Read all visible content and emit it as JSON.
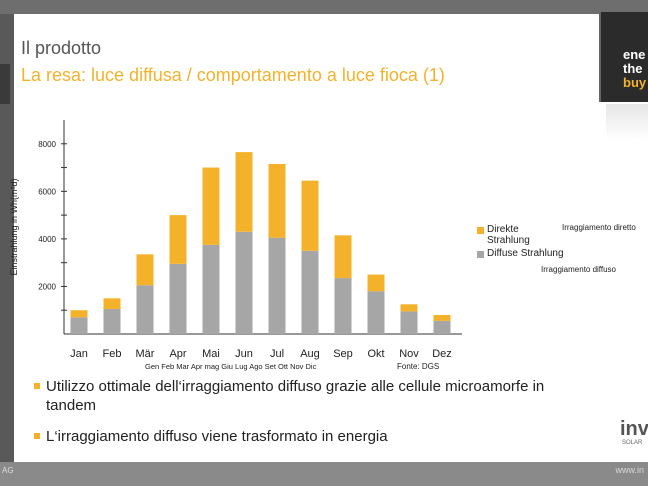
{
  "slide": {
    "title": "Il prodotto",
    "subtitle": "La resa: luce diffusa / comportamento a luce fioca (1)",
    "logo_lines": [
      "ene",
      "the",
      "buy"
    ],
    "brand": "inv",
    "brand_sub": "SOLAR",
    "footer_left": "AG",
    "footer_right": "www.in"
  },
  "colors": {
    "accent": "#f3b22a",
    "diffuse": "#a6a6a6",
    "text": "#222222"
  },
  "chart_data": {
    "type": "bar",
    "stacked": true,
    "ylabel": "Einstrahlung in Wh(m²d)",
    "ylim": [
      0,
      9000
    ],
    "yticks": [
      2000,
      4000,
      6000,
      8000
    ],
    "categories": [
      "Jan",
      "Feb",
      "Mär",
      "Apr",
      "Mai",
      "Jun",
      "Jul",
      "Aug",
      "Sep",
      "Okt",
      "Nov",
      "Dez"
    ],
    "categories_it": "Gen Feb  Mar Apr mag Giu Lug Ago Set Ott Nov Dic",
    "series": [
      {
        "name": "Diffuse Strahlung",
        "color": "#a6a6a6",
        "values": [
          700,
          1050,
          2050,
          2950,
          3750,
          4300,
          4050,
          3500,
          2350,
          1800,
          950,
          550
        ]
      },
      {
        "name": "Direkte Strahlung",
        "color": "#f3b22a",
        "values": [
          300,
          450,
          1300,
          2050,
          3250,
          3350,
          3100,
          2950,
          1800,
          700,
          300,
          250
        ]
      }
    ],
    "legend_notes": [
      "Irraggiamento diretto",
      "Irraggiamento diffuso"
    ],
    "source": "Fonte: DGS"
  },
  "bullets": [
    "Utilizzo ottimale dell‘irraggiamento diffuso grazie alle cellule microamorfe in tandem",
    "L‘irraggiamento diffuso viene trasformato in energia"
  ]
}
